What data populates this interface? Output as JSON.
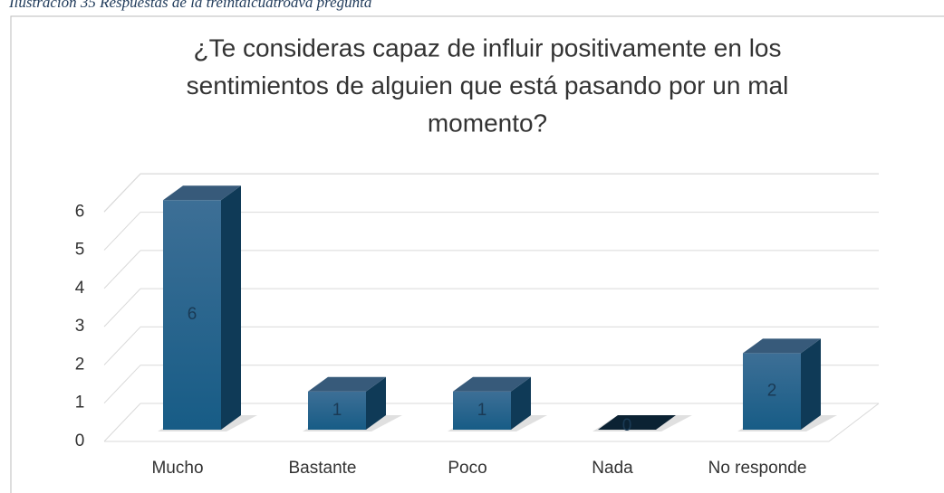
{
  "caption": "Ilustración 35 Respuestas de la treintaicuatroava pregunta",
  "chart_data": {
    "type": "bar3d",
    "title": [
      "¿Te consideras capaz de influir positivamente en los",
      "sentimientos de alguien que está pasando por un mal",
      "momento?"
    ],
    "categories": [
      "Mucho",
      "Bastante",
      "Poco",
      "Nada",
      "No responde"
    ],
    "values": [
      6,
      1,
      1,
      0,
      2
    ],
    "color": "#1f5f8b",
    "ylim": [
      0,
      7
    ],
    "yticks": [
      0,
      1,
      2,
      3,
      4,
      5,
      6
    ],
    "grid": true
  }
}
